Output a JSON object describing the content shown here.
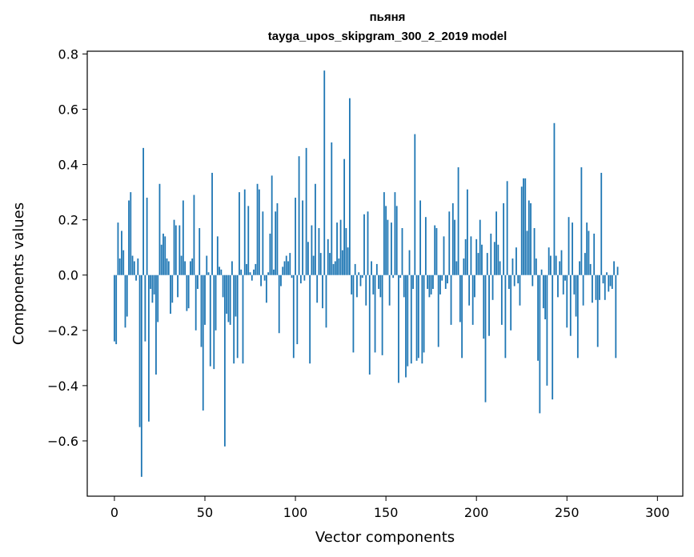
{
  "chart_data": {
    "type": "bar",
    "title": "пьяня",
    "subtitle": "tayga_upos_skipgram_300_2_2019 model",
    "xlabel": "Vector components",
    "ylabel": "Components values",
    "xlim": [
      -15,
      314
    ],
    "ylim": [
      -0.8,
      0.81
    ],
    "xticks": [
      0,
      50,
      100,
      150,
      200,
      250,
      300
    ],
    "yticks": [
      -0.6,
      -0.4,
      -0.2,
      0.0,
      0.2,
      0.4,
      0.6,
      0.8
    ],
    "xtick_labels": [
      "0",
      "50",
      "100",
      "150",
      "200",
      "250",
      "300"
    ],
    "ytick_labels": [
      "−0.6",
      "−0.4",
      "−0.2",
      "0.0",
      "0.2",
      "0.4",
      "0.6",
      "0.8"
    ],
    "bar_color": "#1f77b4",
    "grid": false,
    "values": [
      -0.24,
      -0.25,
      0.19,
      0.06,
      0.16,
      0.09,
      -0.19,
      -0.15,
      0.27,
      0.3,
      0.07,
      0.05,
      -0.02,
      0.06,
      -0.55,
      -0.73,
      0.46,
      -0.24,
      0.28,
      -0.53,
      -0.05,
      -0.1,
      -0.07,
      -0.36,
      -0.17,
      0.33,
      0.11,
      0.15,
      0.14,
      0.06,
      0.05,
      -0.14,
      -0.1,
      0.2,
      0.18,
      -0.08,
      0.18,
      0.07,
      0.27,
      0.05,
      -0.13,
      -0.12,
      0.05,
      0.06,
      0.29,
      -0.2,
      -0.05,
      0.17,
      -0.26,
      -0.49,
      -0.18,
      0.07,
      0.01,
      -0.33,
      0.37,
      -0.34,
      -0.2,
      0.14,
      0.03,
      0.02,
      -0.08,
      -0.62,
      -0.14,
      -0.17,
      -0.18,
      0.05,
      -0.32,
      -0.15,
      -0.3,
      0.3,
      0.02,
      -0.32,
      0.31,
      0.04,
      0.25,
      0.01,
      -0.02,
      0.02,
      0.04,
      0.33,
      0.31,
      -0.04,
      0.23,
      -0.02,
      -0.1,
      0.01,
      0.15,
      0.36,
      0.02,
      0.23,
      0.26,
      -0.21,
      -0.04,
      0.03,
      0.05,
      0.07,
      0.05,
      0.08,
      -0.01,
      -0.3,
      0.28,
      -0.25,
      0.43,
      -0.03,
      0.27,
      -0.02,
      0.46,
      0.12,
      -0.32,
      0.18,
      0.07,
      0.33,
      -0.1,
      0.17,
      0.08,
      -0.12,
      0.74,
      -0.19,
      0.13,
      0.08,
      0.48,
      0.04,
      0.05,
      0.19,
      0.06,
      0.2,
      0.09,
      0.42,
      0.17,
      0.1,
      0.64,
      -0.07,
      -0.28,
      0.04,
      -0.08,
      0.01,
      -0.04,
      -0.01,
      0.22,
      -0.11,
      0.23,
      -0.36,
      0.05,
      -0.07,
      -0.28,
      0.04,
      -0.05,
      -0.08,
      -0.29,
      0.3,
      0.25,
      0.2,
      -0.11,
      0.19,
      -0.01,
      0.3,
      0.25,
      -0.39,
      -0.01,
      0.17,
      -0.08,
      -0.37,
      -0.33,
      0.09,
      -0.32,
      -0.05,
      0.51,
      -0.31,
      -0.3,
      0.27,
      -0.32,
      -0.28,
      0.21,
      -0.05,
      -0.08,
      -0.07,
      -0.05,
      0.18,
      0.17,
      -0.26,
      -0.07,
      -0.02,
      0.14,
      -0.05,
      -0.03,
      0.23,
      -0.18,
      0.26,
      0.2,
      0.05,
      0.39,
      -0.17,
      -0.3,
      0.06,
      0.13,
      0.31,
      -0.11,
      0.14,
      -0.18,
      -0.08,
      0.13,
      0.08,
      0.2,
      0.11,
      -0.23,
      -0.46,
      0.08,
      -0.22,
      0.15,
      -0.09,
      0.12,
      0.23,
      0.11,
      0.05,
      -0.18,
      0.26,
      -0.3,
      0.34,
      -0.05,
      -0.2,
      0.06,
      -0.04,
      0.1,
      -0.03,
      -0.11,
      0.32,
      0.35,
      0.35,
      0.16,
      0.27,
      0.26,
      -0.04,
      0.17,
      0.06,
      -0.31,
      -0.5,
      0.02,
      -0.12,
      -0.16,
      -0.4,
      0.1,
      0.07,
      -0.45,
      0.55,
      0.07,
      -0.08,
      0.05,
      0.09,
      -0.07,
      -0.02,
      -0.19,
      0.21,
      -0.22,
      0.19,
      -0.07,
      -0.15,
      -0.3,
      0.05,
      0.39,
      -0.11,
      0.08,
      0.19,
      0.16,
      0.04,
      -0.1,
      0.15,
      -0.09,
      -0.26,
      -0.09,
      0.37,
      -0.03,
      -0.09,
      0.01,
      -0.06,
      -0.04,
      -0.05,
      0.05,
      -0.3,
      0.03
    ],
    "x_start": 0
  }
}
